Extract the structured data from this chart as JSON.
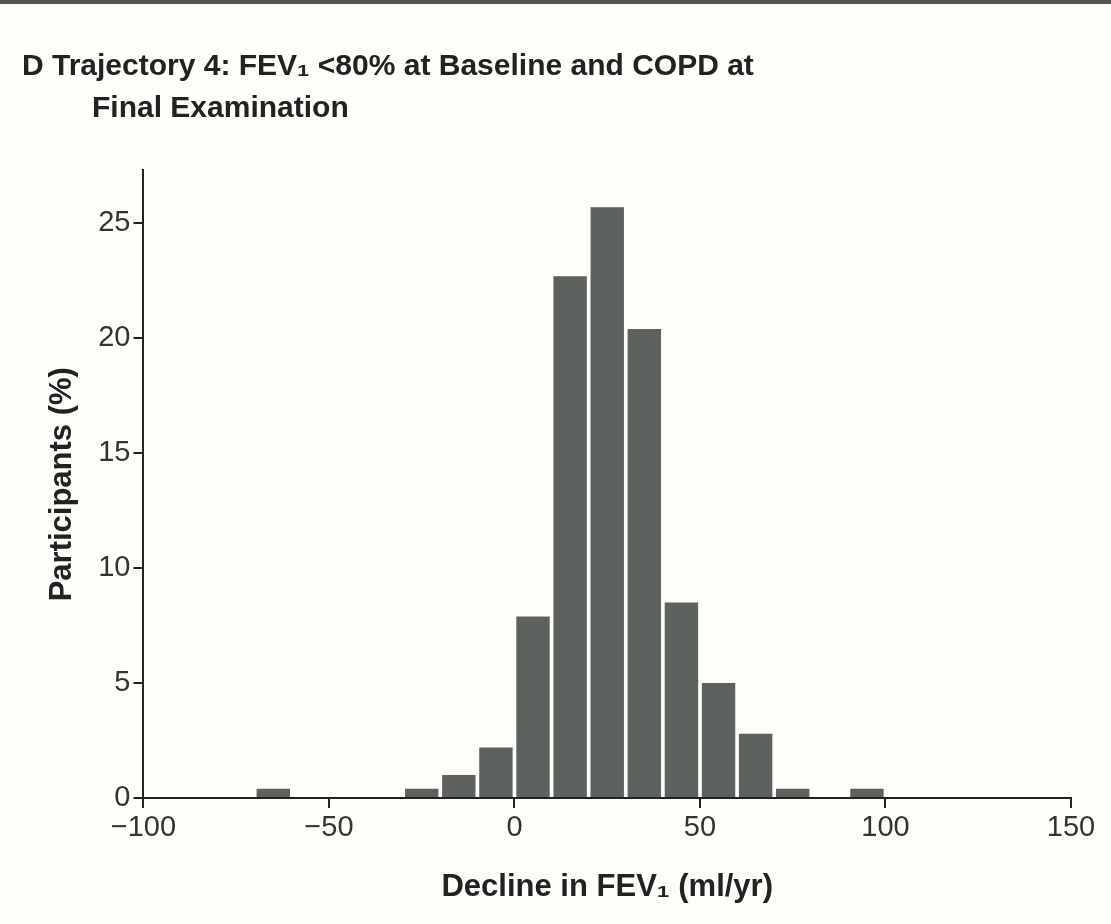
{
  "chart_data": {
    "type": "histogram",
    "title": "D  Trajectory 4: FEV₁ <80% at Baseline and COPD at Final Examination",
    "xlabel": "Decline in FEV₁ (ml/yr)",
    "ylabel": "Participants (%)",
    "bins": [
      -100,
      -90,
      -80,
      -70,
      -60,
      -50,
      -40,
      -30,
      -20,
      -10,
      0,
      10,
      20,
      30,
      40,
      50,
      60,
      70,
      80,
      90,
      100
    ],
    "values": [
      0,
      0,
      0,
      0.4,
      0,
      0,
      0,
      0.4,
      1.0,
      2.2,
      7.9,
      22.7,
      25.7,
      20.4,
      8.5,
      5.0,
      2.8,
      0.4,
      0,
      0.4
    ],
    "color": "#5d625e",
    "xlim": [
      -100,
      150
    ],
    "ylim": [
      0,
      27.3
    ],
    "xticks": [
      {
        "value": -100,
        "label": "−100"
      },
      {
        "value": -50,
        "label": "−50"
      },
      0,
      50,
      100,
      150
    ],
    "yticks": [
      0,
      5,
      10,
      15,
      20,
      25
    ],
    "grid": false,
    "legend": false
  }
}
